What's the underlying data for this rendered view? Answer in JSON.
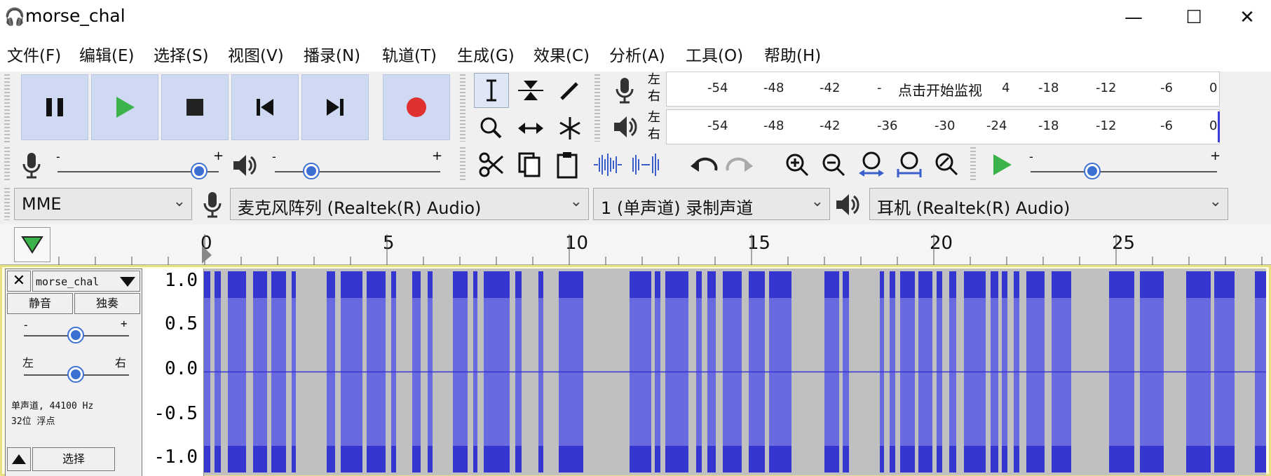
{
  "window": {
    "title": "morse_chal",
    "app_icon": "headphones-icon",
    "minimize": "—",
    "maximize": "☐",
    "close": "✕"
  },
  "menu": [
    "文件(F)",
    "编辑(E)",
    "选择(S)",
    "视图(V)",
    "播录(N)",
    "轨道(T)",
    "生成(G)",
    "效果(C)",
    "分析(A)",
    "工具(O)",
    "帮助(H)"
  ],
  "transport": {
    "buttons": [
      "pause-icon",
      "play-icon",
      "stop-icon",
      "skip-start-icon",
      "skip-end-icon",
      "record-icon"
    ],
    "record_color": "#e03030",
    "play_color": "#3cb34a"
  },
  "tools": [
    "selection-tool-icon",
    "envelope-tool-icon",
    "draw-tool-icon",
    "zoom-tool-icon",
    "time-shift-tool-icon",
    "multi-tool-icon"
  ],
  "meters": {
    "record_lr": [
      "左",
      "右"
    ],
    "play_lr": [
      "左",
      "右"
    ],
    "ticks": [
      "-54",
      "-48",
      "-42",
      "-36",
      "-30",
      "-24",
      "-18",
      "-12",
      "-6",
      "0"
    ],
    "record_ticks": [
      "-54",
      "-48",
      "-42",
      "-",
      "4",
      "-18",
      "-12",
      "-6",
      "0"
    ],
    "monitor_text": "点击开始监视"
  },
  "mixer": {
    "minus": "-",
    "plus": "+",
    "rec_volume": 0.88,
    "play_volume": 0.22,
    "playspeed": 0.33
  },
  "devices": {
    "host": "MME",
    "input": "麦克风阵列 (Realtek(R) Audio)",
    "channels": "1 (单声道) 录制声道",
    "output": "耳机 (Realtek(R) Audio)"
  },
  "ruler": {
    "labels": [
      "0",
      "5",
      "10",
      "15",
      "20",
      "25"
    ]
  },
  "track": {
    "name": "morse_chal",
    "mute": "静音",
    "solo": "独奏",
    "gain_minus": "-",
    "gain_plus": "+",
    "pan_left": "左",
    "pan_right": "右",
    "info1": "单声道, 44100 Hz",
    "info2": "32位 浮点",
    "select": "选择",
    "scale": [
      "1.0",
      "0.5",
      "0.0",
      "-0.5",
      "-1.0"
    ]
  },
  "colors": {
    "wave_dark": "#3535d0",
    "wave_light": "#6a6ae0",
    "wave_bg": "#c0c0c0",
    "accent": "#3b6fd1"
  }
}
